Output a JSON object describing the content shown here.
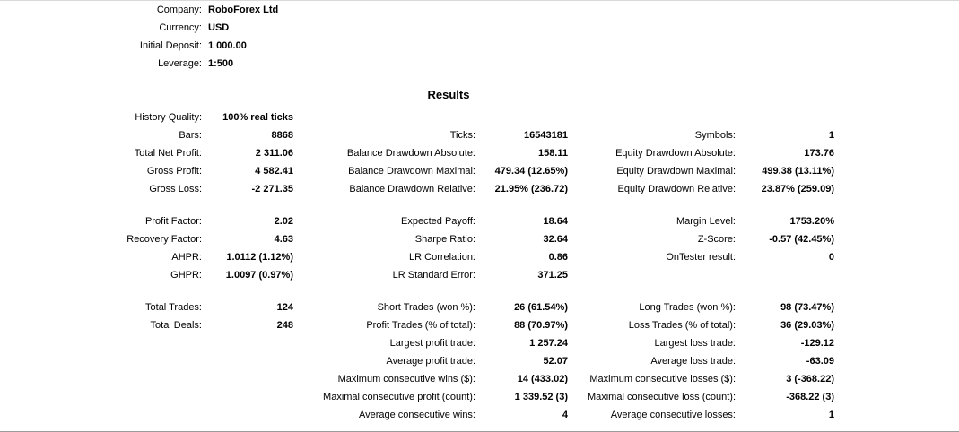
{
  "header": {
    "rows": [
      {
        "label": "Company:",
        "value": "RoboForex Ltd"
      },
      {
        "label": "Currency:",
        "value": "USD"
      },
      {
        "label": "Initial Deposit:",
        "value": "1 000.00"
      },
      {
        "label": "Leverage:",
        "value": "1:500"
      }
    ]
  },
  "results": {
    "title": "Results",
    "blocks": [
      {
        "rows": [
          [
            "History Quality:",
            "100% real ticks",
            "",
            "",
            "",
            ""
          ],
          [
            "Bars:",
            "8868",
            "Ticks:",
            "16543181",
            "Symbols:",
            "1"
          ],
          [
            "Total Net Profit:",
            "2 311.06",
            "Balance Drawdown Absolute:",
            "158.11",
            "Equity Drawdown Absolute:",
            "173.76"
          ],
          [
            "Gross Profit:",
            "4 582.41",
            "Balance Drawdown Maximal:",
            "479.34 (12.65%)",
            "Equity Drawdown Maximal:",
            "499.38 (13.11%)"
          ],
          [
            "Gross Loss:",
            "-2 271.35",
            "Balance Drawdown Relative:",
            "21.95% (236.72)",
            "Equity Drawdown Relative:",
            "23.87% (259.09)"
          ]
        ]
      },
      {
        "rows": [
          [
            "Profit Factor:",
            "2.02",
            "Expected Payoff:",
            "18.64",
            "Margin Level:",
            "1753.20%"
          ],
          [
            "Recovery Factor:",
            "4.63",
            "Sharpe Ratio:",
            "32.64",
            "Z-Score:",
            "-0.57 (42.45%)"
          ],
          [
            "AHPR:",
            "1.0112 (1.12%)",
            "LR Correlation:",
            "0.86",
            "OnTester result:",
            "0"
          ],
          [
            "GHPR:",
            "1.0097 (0.97%)",
            "LR Standard Error:",
            "371.25",
            "",
            ""
          ]
        ]
      },
      {
        "rows": [
          [
            "Total Trades:",
            "124",
            "Short Trades (won %):",
            "26 (61.54%)",
            "Long Trades (won %):",
            "98 (73.47%)"
          ],
          [
            "Total Deals:",
            "248",
            "Profit Trades (% of total):",
            "88 (70.97%)",
            "Loss Trades (% of total):",
            "36 (29.03%)"
          ],
          [
            "",
            "",
            "Largest profit trade:",
            "1 257.24",
            "Largest loss trade:",
            "-129.12"
          ],
          [
            "",
            "",
            "Average profit trade:",
            "52.07",
            "Average loss trade:",
            "-63.09"
          ],
          [
            "",
            "",
            "Maximum consecutive wins ($):",
            "14 (433.02)",
            "Maximum consecutive losses ($):",
            "3 (-368.22)"
          ],
          [
            "",
            "",
            "Maximal consecutive profit (count):",
            "1 339.52 (3)",
            "Maximal consecutive loss (count):",
            "-368.22 (3)"
          ],
          [
            "",
            "",
            "Average consecutive wins:",
            "4",
            "Average consecutive losses:",
            "1"
          ]
        ]
      }
    ]
  },
  "colors": {
    "text": "#000000",
    "background": "#ffffff",
    "top_rule": "#d9d9d9",
    "bottom_rule": "#9b9b9b"
  }
}
